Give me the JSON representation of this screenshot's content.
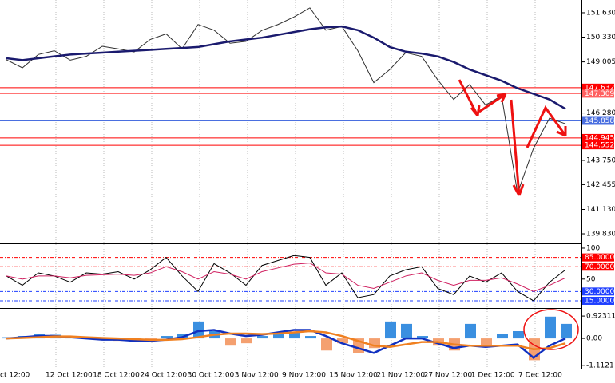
{
  "chart_data": [
    {
      "type": "line",
      "ylim": [
        139.32,
        152.31
      ],
      "yticks": [
        {
          "value": 151.63,
          "label": "151.630"
        },
        {
          "value": 150.33,
          "label": "150.330"
        },
        {
          "value": 149.005,
          "label": "149.005"
        },
        {
          "value": 146.28,
          "label": "146.280"
        },
        {
          "value": 143.75,
          "label": "143.750"
        },
        {
          "value": 142.455,
          "label": "142.455"
        },
        {
          "value": 141.13,
          "label": "141.130"
        },
        {
          "value": 139.83,
          "label": "139.830"
        }
      ],
      "levels": [
        {
          "value": 147.632,
          "label": "147.632",
          "color": "#ff0000"
        },
        {
          "value": 147.309,
          "label": "147.309",
          "color": "#ff6060"
        },
        {
          "value": 145.858,
          "label": "145.858",
          "color": "#4a6fe0"
        },
        {
          "value": 144.945,
          "label": "144.945",
          "color": "#ff0000"
        },
        {
          "value": 144.552,
          "label": "144.552",
          "color": "#ff0000"
        }
      ],
      "series": [
        {
          "color": "#303030",
          "values": [
            149.12,
            148.69,
            149.4,
            149.6,
            149.1,
            149.3,
            149.84,
            149.7,
            149.54,
            150.2,
            150.5,
            149.7,
            151.0,
            150.7,
            150.0,
            150.1,
            150.69,
            151.0,
            151.4,
            151.89,
            150.7,
            150.9,
            149.6,
            147.9,
            148.6,
            149.5,
            149.3,
            148.05,
            147.0,
            147.8,
            146.7,
            147.2,
            142.0,
            144.4,
            146.0,
            145.7
          ]
        },
        {
          "color": "#1a1a6e",
          "values": [
            149.2,
            149.1,
            149.2,
            149.3,
            149.4,
            149.45,
            149.5,
            149.55,
            149.6,
            149.65,
            149.7,
            149.75,
            149.8,
            149.95,
            150.1,
            150.2,
            150.3,
            150.45,
            150.6,
            150.75,
            150.85,
            150.9,
            150.7,
            150.3,
            149.8,
            149.55,
            149.45,
            149.3,
            149.0,
            148.6,
            148.3,
            148.0,
            147.6,
            147.3,
            147.0,
            146.5
          ]
        }
      ]
    },
    {
      "type": "line",
      "ylim": [
        3.4,
        106.4
      ],
      "yticks": [
        100,
        50
      ],
      "levels": [
        {
          "value": 85,
          "label": "85.0000",
          "color": "#ff0000"
        },
        {
          "value": 70,
          "label": "70.0000",
          "color": "#ff0000"
        },
        {
          "value": 30,
          "label": "30.0000",
          "color": "#2040ff"
        },
        {
          "value": 15,
          "label": "15.0000",
          "color": "#2040ff"
        }
      ],
      "series": [
        {
          "color": "#000000",
          "values": [
            55,
            40,
            60,
            55,
            45,
            60,
            58,
            62,
            50,
            65,
            85,
            55,
            30,
            75,
            60,
            40,
            72,
            80,
            88,
            85,
            40,
            60,
            20,
            25,
            55,
            65,
            70,
            35,
            25,
            55,
            45,
            60,
            30,
            15,
            45,
            65
          ]
        },
        {
          "color": "#d02060",
          "values": [
            55,
            50,
            55,
            55,
            52,
            56,
            57,
            58,
            56,
            60,
            70,
            62,
            50,
            62,
            58,
            50,
            62,
            68,
            74,
            76,
            60,
            58,
            40,
            35,
            45,
            55,
            60,
            48,
            40,
            48,
            48,
            52,
            42,
            30,
            40,
            52
          ]
        }
      ]
    },
    {
      "type": "bar",
      "ylim": [
        -1.25,
        1.19
      ],
      "yticks": [
        {
          "value": 0.92311,
          "label": "0.92311"
        },
        {
          "value": 0,
          "label": "0.00"
        },
        {
          "value": -1.1121,
          "label": "-1.1121"
        }
      ],
      "colors": {
        "up": "#3a8fe0",
        "down": "#f4a070"
      },
      "values": [
        0.05,
        0.1,
        0.2,
        0.15,
        0.1,
        0.05,
        -0.05,
        -0.1,
        -0.15,
        -0.1,
        0.1,
        0.2,
        0.7,
        0.3,
        -0.3,
        -0.2,
        0.1,
        0.2,
        0.25,
        0.1,
        -0.5,
        -0.2,
        -0.6,
        -0.4,
        0.7,
        0.6,
        0.1,
        -0.3,
        -0.5,
        0.6,
        -0.3,
        0.2,
        0.3,
        -0.9,
        0.9,
        0.6
      ],
      "series": [
        {
          "color": "#1030c0",
          "values": [
            0.0,
            0.05,
            0.1,
            0.1,
            0.05,
            0.0,
            -0.05,
            -0.05,
            -0.1,
            -0.1,
            -0.05,
            0.05,
            0.3,
            0.35,
            0.2,
            0.1,
            0.15,
            0.25,
            0.35,
            0.35,
            0.1,
            -0.2,
            -0.4,
            -0.6,
            -0.3,
            0.0,
            0.0,
            -0.2,
            -0.4,
            -0.3,
            -0.35,
            -0.3,
            -0.25,
            -0.8,
            -0.3,
            0.0
          ]
        },
        {
          "color": "#f08020",
          "values": [
            0.0,
            0.02,
            0.05,
            0.08,
            0.08,
            0.05,
            0.02,
            0.0,
            -0.03,
            -0.06,
            -0.06,
            -0.03,
            0.05,
            0.15,
            0.2,
            0.2,
            0.18,
            0.2,
            0.25,
            0.3,
            0.25,
            0.1,
            -0.1,
            -0.3,
            -0.35,
            -0.25,
            -0.15,
            -0.15,
            -0.25,
            -0.3,
            -0.3,
            -0.3,
            -0.3,
            -0.45,
            -0.4,
            -0.2
          ]
        }
      ],
      "xlabels": [
        "ct 12:00",
        "12 Oct 12:00",
        "18 Oct 12:00",
        "24 Oct 12:00",
        "30 Oct 12:00",
        "3 Nov 12:00",
        "9 Nov 12:00",
        "15 Nov 12:00",
        "21 Nov 12:00",
        "27 Nov 12:00",
        "1 Dec 12:00",
        "7 Dec 12:00"
      ]
    }
  ]
}
